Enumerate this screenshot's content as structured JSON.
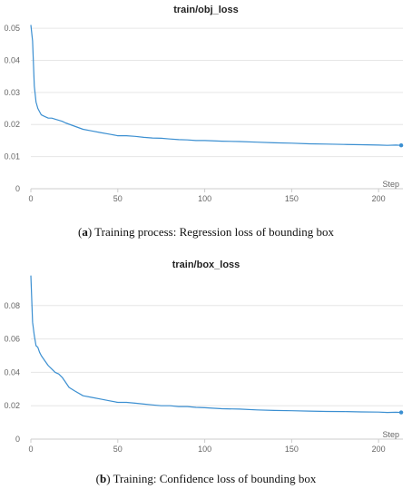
{
  "chart_data": [
    {
      "type": "line",
      "title": "train/obj_loss",
      "xlabel": "Step",
      "ylabel": "",
      "xlim": [
        0,
        214
      ],
      "ylim": [
        0,
        0.052
      ],
      "xticks": [
        0,
        50,
        100,
        150,
        200
      ],
      "yticks": [
        0,
        0.01,
        0.02,
        0.03,
        0.04,
        0.05
      ],
      "ytick_labels": [
        "0",
        "0.01",
        "0.02",
        "0.03",
        "0.04",
        "0.05"
      ],
      "grid": true,
      "color": "#3b8fd1",
      "series": [
        {
          "x": [
            0,
            1,
            2,
            3,
            4,
            5,
            6,
            8,
            10,
            12,
            15,
            18,
            20,
            25,
            30,
            35,
            40,
            45,
            50,
            55,
            60,
            65,
            70,
            75,
            80,
            85,
            90,
            95,
            100,
            110,
            120,
            130,
            140,
            150,
            160,
            170,
            180,
            190,
            200,
            205,
            210,
            213
          ],
          "values": [
            0.051,
            0.046,
            0.032,
            0.027,
            0.025,
            0.024,
            0.023,
            0.0225,
            0.022,
            0.022,
            0.0215,
            0.021,
            0.0205,
            0.0195,
            0.0185,
            0.018,
            0.0175,
            0.017,
            0.0165,
            0.0165,
            0.0163,
            0.016,
            0.0158,
            0.0157,
            0.0155,
            0.0153,
            0.0152,
            0.015,
            0.015,
            0.0148,
            0.0147,
            0.0145,
            0.0143,
            0.0142,
            0.014,
            0.0139,
            0.0138,
            0.0137,
            0.0136,
            0.0135,
            0.0136,
            0.0135
          ]
        }
      ]
    },
    {
      "type": "line",
      "title": "train/box_loss",
      "xlabel": "Step",
      "ylabel": "",
      "xlim": [
        0,
        214
      ],
      "ylim": [
        0,
        0.1
      ],
      "xticks": [
        0,
        50,
        100,
        150,
        200
      ],
      "yticks": [
        0,
        0.02,
        0.04,
        0.06,
        0.08
      ],
      "ytick_labels": [
        "0",
        "0.02",
        "0.04",
        "0.06",
        "0.08"
      ],
      "grid": true,
      "color": "#3b8fd1",
      "series": [
        {
          "x": [
            0,
            1,
            2,
            3,
            4,
            5,
            6,
            8,
            10,
            12,
            14,
            16,
            18,
            20,
            22,
            25,
            30,
            35,
            40,
            45,
            50,
            55,
            60,
            65,
            70,
            75,
            80,
            85,
            90,
            95,
            100,
            110,
            120,
            130,
            140,
            150,
            160,
            170,
            180,
            190,
            200,
            205,
            210,
            213
          ],
          "values": [
            0.098,
            0.07,
            0.062,
            0.056,
            0.055,
            0.052,
            0.05,
            0.047,
            0.044,
            0.042,
            0.04,
            0.039,
            0.037,
            0.034,
            0.031,
            0.029,
            0.026,
            0.025,
            0.024,
            0.023,
            0.022,
            0.022,
            0.0215,
            0.021,
            0.0205,
            0.02,
            0.02,
            0.0195,
            0.0195,
            0.019,
            0.0188,
            0.0182,
            0.018,
            0.0175,
            0.0172,
            0.017,
            0.0168,
            0.0166,
            0.0165,
            0.0163,
            0.0162,
            0.016,
            0.0161,
            0.016
          ]
        }
      ]
    }
  ],
  "captions": {
    "a_label": "a",
    "a_text": " Training process: Regression loss of bounding box",
    "b_label": "b",
    "b_text": " Training: Confidence loss of bounding box"
  }
}
